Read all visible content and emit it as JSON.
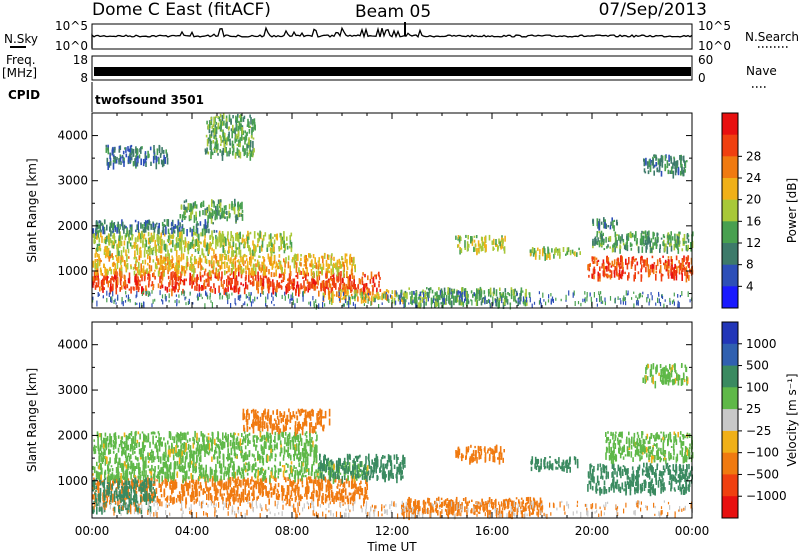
{
  "header": {
    "title": "Dome C East (fitACF)",
    "beam": "Beam 05",
    "date": "07/Sep/2013"
  },
  "sidepanel": {
    "nsky": "N.Sky",
    "freq": "Freq.",
    "freq_unit": "[MHz]",
    "cpid": "CPID",
    "nsearch": "N.Search",
    "nave": "Nave",
    "nsky_ticks": [
      "10^5",
      "10^0"
    ],
    "nsearch_ticks": [
      "10^5",
      "10^0"
    ],
    "freq_ticks": [
      "18",
      "8"
    ],
    "nave_ticks": [
      "60",
      "0"
    ]
  },
  "cpid_value": "twofsound 3501",
  "chart_data": [
    {
      "type": "heatmap",
      "panel": "power",
      "ylabel": "Slant Range [km]",
      "ylim": [
        180,
        4500
      ],
      "yticks": [
        "1000",
        "2000",
        "3000",
        "4000"
      ],
      "xlim": [
        "00:00",
        "24:00"
      ],
      "colorbar": {
        "label": "Power [dB]",
        "ticks": [
          "4",
          "8",
          "12",
          "16",
          "20",
          "24",
          "28"
        ],
        "colors": [
          "#1a1aff",
          "#2d4fb8",
          "#3d7a6a",
          "#48a050",
          "#a8c838",
          "#f0b018",
          "#f07a10",
          "#f04010",
          "#e81010"
        ]
      },
      "regions": [
        {
          "t": [
            0.0,
            11.5
          ],
          "r": [
            600,
            1000
          ],
          "level": 28
        },
        {
          "t": [
            0.0,
            10.5
          ],
          "r": [
            1000,
            1400
          ],
          "level": 20
        },
        {
          "t": [
            0.0,
            8.0
          ],
          "r": [
            1450,
            1900
          ],
          "level": 16
        },
        {
          "t": [
            0.0,
            5.0
          ],
          "r": [
            1900,
            2150
          ],
          "level": 8
        },
        {
          "t": [
            3.5,
            6.0
          ],
          "r": [
            2200,
            2600
          ],
          "level": 12
        },
        {
          "t": [
            0.5,
            3.0
          ],
          "r": [
            3400,
            3800
          ],
          "level": 8
        },
        {
          "t": [
            4.5,
            6.5
          ],
          "r": [
            3600,
            4500
          ],
          "level": 12
        },
        {
          "t": [
            9.0,
            12.5
          ],
          "r": [
            400,
            600
          ],
          "level": 20
        },
        {
          "t": [
            12.3,
            17.5
          ],
          "r": [
            300,
            650
          ],
          "level": 12
        },
        {
          "t": [
            14.5,
            16.5
          ],
          "r": [
            1500,
            1800
          ],
          "level": 16
        },
        {
          "t": [
            17.5,
            19.5
          ],
          "r": [
            1350,
            1550
          ],
          "level": 16
        },
        {
          "t": [
            19.8,
            24.0
          ],
          "r": [
            900,
            1350
          ],
          "level": 28
        },
        {
          "t": [
            20.0,
            24.0
          ],
          "r": [
            1500,
            1900
          ],
          "level": 12
        },
        {
          "t": [
            20.0,
            21.0
          ],
          "r": [
            2000,
            2200
          ],
          "level": 8
        },
        {
          "t": [
            22.0,
            23.8
          ],
          "r": [
            3200,
            3600
          ],
          "level": 8
        }
      ]
    },
    {
      "type": "heatmap",
      "panel": "velocity",
      "ylabel": "Slant Range [km]",
      "ylim": [
        180,
        4500
      ],
      "yticks": [
        "1000",
        "2000",
        "3000",
        "4000"
      ],
      "xlim": [
        "00:00",
        "24:00"
      ],
      "xticks": [
        "00:00",
        "04:00",
        "08:00",
        "12:00",
        "16:00",
        "20:00",
        "00:00"
      ],
      "xlabel": "Time UT",
      "colorbar": {
        "label": "Velocity [m s⁻¹]",
        "ticks": [
          "1000",
          "500",
          "100",
          "25",
          "−25",
          "−100",
          "−500",
          "−1000"
        ],
        "colors": [
          "#2236b8",
          "#3060b0",
          "#3a8a60",
          "#5fb848",
          "#c8c8c8",
          "#f0b018",
          "#f07a10",
          "#f04010",
          "#e81010"
        ]
      },
      "regions": [
        {
          "t": [
            0.0,
            11.0
          ],
          "r": [
            600,
            1100
          ],
          "level": -100
        },
        {
          "t": [
            0.0,
            2.5
          ],
          "r": [
            400,
            1100
          ],
          "level": 100
        },
        {
          "t": [
            0.0,
            11.0
          ],
          "r": [
            1100,
            1450
          ],
          "level": 25
        },
        {
          "t": [
            0.0,
            9.0
          ],
          "r": [
            1500,
            2100
          ],
          "level": 25
        },
        {
          "t": [
            6.0,
            9.5
          ],
          "r": [
            2150,
            2600
          ],
          "level": -100
        },
        {
          "t": [
            9.0,
            12.5
          ],
          "r": [
            1100,
            1600
          ],
          "level": 100
        },
        {
          "t": [
            12.3,
            18.0
          ],
          "r": [
            300,
            650
          ],
          "level": -100
        },
        {
          "t": [
            14.5,
            16.5
          ],
          "r": [
            1500,
            1800
          ],
          "level": -100
        },
        {
          "t": [
            17.5,
            19.5
          ],
          "r": [
            1300,
            1550
          ],
          "level": 100
        },
        {
          "t": [
            19.8,
            24.0
          ],
          "r": [
            800,
            1400
          ],
          "level": 100
        },
        {
          "t": [
            20.5,
            24.0
          ],
          "r": [
            1500,
            2100
          ],
          "level": 25
        },
        {
          "t": [
            22.0,
            23.8
          ],
          "r": [
            3200,
            3600
          ],
          "level": 25
        }
      ]
    }
  ]
}
